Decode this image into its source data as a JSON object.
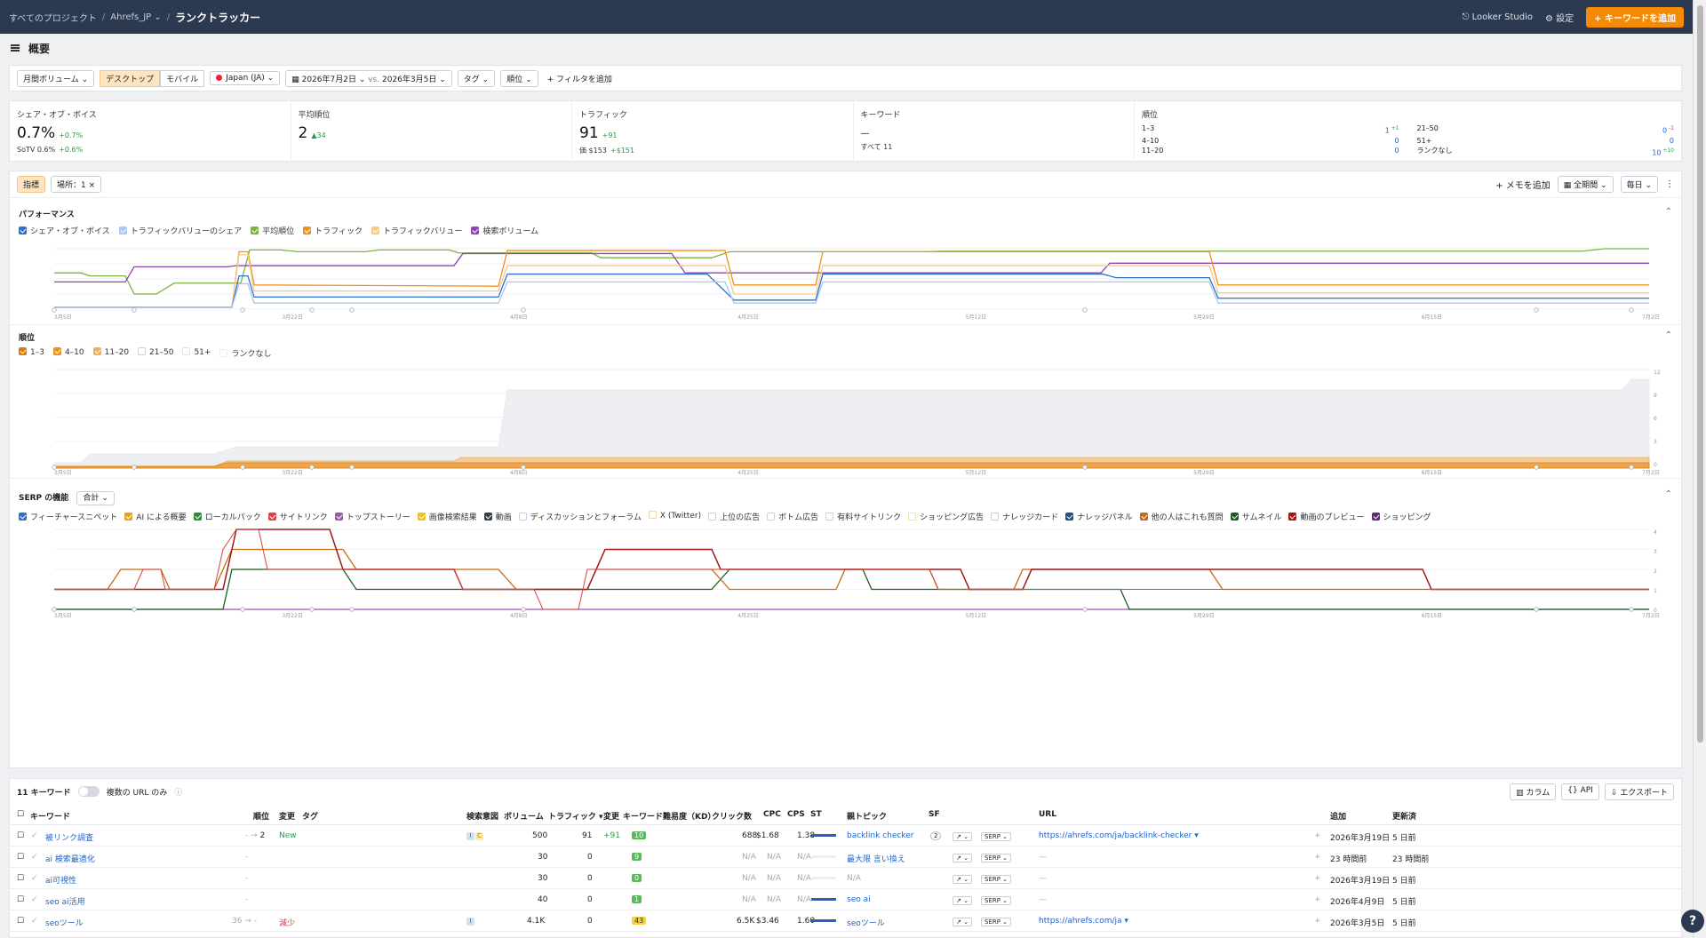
{
  "topbar": {
    "crumb1": "すべてのプロジェクト",
    "crumb2": "Ahrefs_JP",
    "title": "ランクトラッカー",
    "looker": "Looker Studio",
    "settings": "設定",
    "add_keyword": "キーワードを追加"
  },
  "page": {
    "title": "概要"
  },
  "filters": {
    "volume": "月間ボリューム",
    "desktop": "デスクトップ",
    "mobile": "モバイル",
    "country": "Japan (JA)",
    "date_a": "2026年7月2日",
    "vs": "vs.",
    "date_b": "2026年3月5日",
    "tag": "タグ",
    "rank": "順位",
    "add_filter": "フィルタを追加"
  },
  "stats": {
    "sov": {
      "label": "シェア・オブ・ボイス",
      "value": "0.7%",
      "delta": "+0.7%",
      "sub": "SoTV 0.6%",
      "sub_delta": "+0.6%"
    },
    "avg_rank": {
      "label": "平均順位",
      "value": "2",
      "delta": "▲34"
    },
    "traffic": {
      "label": "トラフィック",
      "value": "91",
      "delta": "+91",
      "sub": "価 $153",
      "sub_delta": "+$151"
    },
    "keywords": {
      "label": "キーワード",
      "value": "—",
      "sub": "すべて 11"
    },
    "ranks": {
      "label": "順位",
      "rows": [
        {
          "k": "1–3",
          "v": "1",
          "d": "+1"
        },
        {
          "k": "21–50",
          "v": "0",
          "d": "-1"
        },
        {
          "k": "4–10",
          "v": "0",
          "d": ""
        },
        {
          "k": "51+",
          "v": "0",
          "d": ""
        },
        {
          "k": "11–20",
          "v": "0",
          "d": ""
        },
        {
          "k": "ランクなし",
          "v": "10",
          "d": "+10"
        }
      ]
    }
  },
  "panel": {
    "tab_metric": "指標",
    "tab_location": "場所：1",
    "add_memo": "メモを追加",
    "period": "全期間",
    "interval": "毎日"
  },
  "performance": {
    "title": "パフォーマンス",
    "legend": [
      {
        "name": "シェア・オブ・ボイス",
        "color": "#2f6fd0",
        "checked": true
      },
      {
        "name": "トラフィックバリューのシェア",
        "color": "#a9c8ef",
        "checked": true
      },
      {
        "name": "平均順位",
        "color": "#7cb342",
        "checked": true
      },
      {
        "name": "トラフィック",
        "color": "#f0911c",
        "checked": true
      },
      {
        "name": "トラフィックバリュー",
        "color": "#f7c98c",
        "checked": true
      },
      {
        "name": "検索ボリューム",
        "color": "#8e44ad",
        "checked": true
      }
    ]
  },
  "ranks_chart": {
    "title": "順位",
    "legend": [
      {
        "name": "1–3",
        "color": "#e07b00",
        "checked": true
      },
      {
        "name": "4–10",
        "color": "#f0911c",
        "checked": true
      },
      {
        "name": "11–20",
        "color": "#f5b04f",
        "checked": true
      },
      {
        "name": "21–50",
        "color": "#cfd3d9",
        "checked": false
      },
      {
        "name": "51+",
        "color": "#dfe2e6",
        "checked": false
      },
      {
        "name": "ランクなし",
        "color": "#eceef1",
        "checked": false
      }
    ],
    "yticks": [
      "12",
      "9",
      "6",
      "3",
      "0"
    ]
  },
  "serp": {
    "title": "SERP の機能",
    "mode": "合計",
    "legend": [
      {
        "name": "フィーチャースニペット",
        "color": "#2f6fd0",
        "checked": true
      },
      {
        "name": "AI による概要",
        "color": "#e8a020",
        "checked": true
      },
      {
        "name": "ローカルパック",
        "color": "#2e8b3e",
        "checked": true
      },
      {
        "name": "サイトリンク",
        "color": "#e04040",
        "checked": true
      },
      {
        "name": "トップストーリー",
        "color": "#9b59b6",
        "checked": true
      },
      {
        "name": "画像検索結果",
        "color": "#e6c229",
        "checked": true
      },
      {
        "name": "動画",
        "color": "#33414f",
        "checked": true
      },
      {
        "name": "ディスカッションとフォーラム",
        "color": "#bcd3ef",
        "checked": false
      },
      {
        "name": "X (Twitter)",
        "color": "#f4d3a8",
        "checked": false
      },
      {
        "name": "上位の広告",
        "color": "#b9e0c4",
        "checked": false
      },
      {
        "name": "ボトム広告",
        "color": "#f6c0c0",
        "checked": false
      },
      {
        "name": "有料サイトリンク",
        "color": "#dcc6e8",
        "checked": false
      },
      {
        "name": "ショッピング広告",
        "color": "#f2e2a4",
        "checked": false
      },
      {
        "name": "ナレッジカード",
        "color": "#c8cdd3",
        "checked": false
      },
      {
        "name": "ナレッジパネル",
        "color": "#1f4f8a",
        "checked": true
      },
      {
        "name": "他の人はこれも質問",
        "color": "#c76a12",
        "checked": true
      },
      {
        "name": "サムネイル",
        "color": "#1b5e20",
        "checked": true
      },
      {
        "name": "動画のプレビュー",
        "color": "#a01818",
        "checked": true
      },
      {
        "name": "ショッピング",
        "color": "#5e2d79",
        "checked": true
      }
    ],
    "yticks": [
      "4",
      "3",
      "2",
      "1",
      "0"
    ]
  },
  "xaxis": [
    "3月5日",
    "3月22日",
    "4月8日",
    "4月25日",
    "5月12日",
    "5月29日",
    "6月15日",
    "7月2日"
  ],
  "keywords": {
    "count_label": "11 キーワード",
    "multi_url": "複数の URL のみ",
    "columns_btn": "カラム",
    "api_btn": "API",
    "export_btn": "エクスポート",
    "headers": {
      "keyword": "キーワード",
      "rank": "順位",
      "change": "変更",
      "tag": "タグ",
      "intent": "検索意図",
      "volume": "ボリューム",
      "traffic": "トラフィック ▾",
      "tchange": "変更",
      "kd": "キーワード難易度（KD）",
      "clicks": "クリック数",
      "cpc": "CPC",
      "cps": "CPS",
      "st": "ST",
      "parent": "親トピック",
      "sf": "SF",
      "url": "URL",
      "added": "追加",
      "updated": "更新済"
    },
    "rows": [
      {
        "keyword": "被リンク調査",
        "rank": "2",
        "rank_from": "- → ",
        "change": "New",
        "intents": [
          "I",
          "C"
        ],
        "volume": "500",
        "traffic": "91",
        "tchange": "+91",
        "kd": "10",
        "kd_color": "#5cb85c",
        "clicks": "688",
        "cpc": "$1.68",
        "cps": "1.38",
        "parent": "backlink checker",
        "sf": "2",
        "serp": "SERP",
        "url": "https://ahrefs.com/ja/backlink-checker ▾",
        "added": "2026年3月19日",
        "updated": "5 日前"
      },
      {
        "keyword": "ai 検索最適化",
        "rank": "",
        "rank_from": "-",
        "change": "",
        "intents": [],
        "volume": "30",
        "traffic": "0",
        "tchange": "",
        "kd": "9",
        "kd_color": "#5cb85c",
        "clicks": "N/A",
        "cpc": "N/A",
        "cps": "N/A",
        "parent": "最大限 言い換え",
        "sf": "",
        "serp": "SERP",
        "url": "—",
        "added": "23 時間前",
        "updated": "23 時間前"
      },
      {
        "keyword": "ai可視性",
        "rank": "",
        "rank_from": "-",
        "change": "",
        "intents": [],
        "volume": "30",
        "traffic": "0",
        "tchange": "",
        "kd": "0",
        "kd_color": "#5cb85c",
        "clicks": "N/A",
        "cpc": "N/A",
        "cps": "N/A",
        "parent": "N/A",
        "sf": "",
        "serp": "SERP",
        "url": "—",
        "added": "2026年3月19日",
        "updated": "5 日前"
      },
      {
        "keyword": "seo ai活用",
        "rank": "",
        "rank_from": "-",
        "change": "",
        "intents": [],
        "volume": "40",
        "traffic": "0",
        "tchange": "",
        "kd": "1",
        "kd_color": "#5cb85c",
        "clicks": "N/A",
        "cpc": "N/A",
        "cps": "N/A",
        "parent": "seo ai",
        "sf": "",
        "serp": "SERP",
        "url": "—",
        "added": "2026年4月9日",
        "updated": "5 日前"
      },
      {
        "keyword": "seoツール",
        "rank": "",
        "rank_from": "36 → -",
        "change": "減少",
        "intents": [
          "I"
        ],
        "volume": "4.1K",
        "traffic": "0",
        "tchange": "",
        "kd": "43",
        "kd_color": "#f2d04a",
        "clicks": "6.5K",
        "cpc": "$3.46",
        "cps": "1.60",
        "parent": "seoツール",
        "sf": "",
        "serp": "SERP",
        "url": "https://ahrefs.com/ja ▾",
        "added": "2026年3月5日",
        "updated": "5 日前"
      }
    ]
  },
  "help": "?"
}
